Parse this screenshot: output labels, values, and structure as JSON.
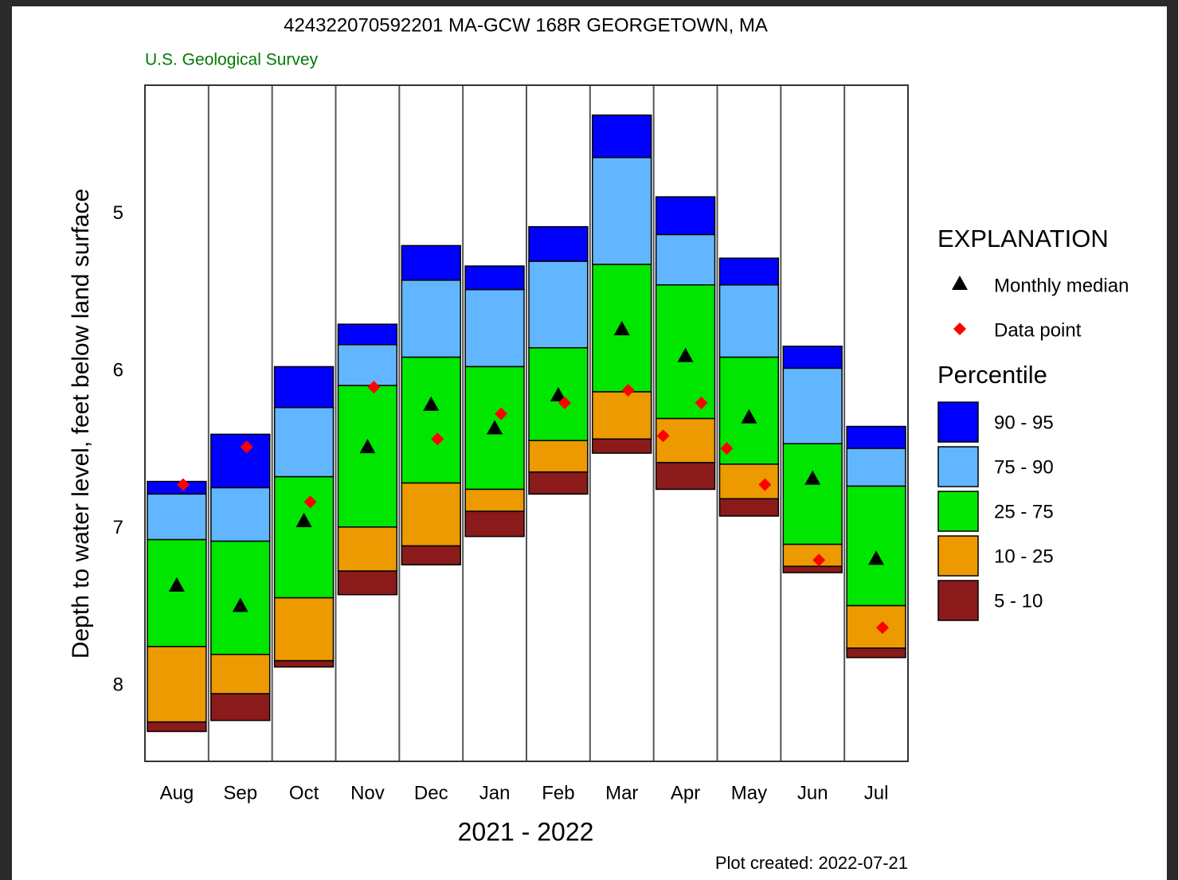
{
  "chart_data": {
    "type": "percentile-box",
    "title": "424322070592201 MA-GCW 168R GEORGETOWN, MA",
    "subtitle": "U.S. Geological Survey",
    "y_label": "Depth to water level, feet below land surface",
    "x_label": "2021 - 2022",
    "footnote": "Plot created: 2022-07-21",
    "categories": [
      "Aug",
      "Sep",
      "Oct",
      "Nov",
      "Dec",
      "Jan",
      "Feb",
      "Mar",
      "Apr",
      "May",
      "Jun",
      "Jul"
    ],
    "ylim": [
      4.18,
      8.48
    ],
    "y_inverted": true,
    "yticks": [
      5,
      6,
      7,
      8
    ],
    "boundaries": [
      [
        6.7,
        6.4,
        5.97,
        5.7,
        5.2,
        5.33,
        5.08,
        4.37,
        4.89,
        5.28,
        5.84,
        6.35
      ],
      [
        6.78,
        6.74,
        6.23,
        5.83,
        5.42,
        5.48,
        5.3,
        4.64,
        5.13,
        5.45,
        5.98,
        6.49
      ],
      [
        7.07,
        7.08,
        6.67,
        6.09,
        5.91,
        5.97,
        5.85,
        5.32,
        5.45,
        5.91,
        6.46,
        6.73
      ],
      [
        7.75,
        7.8,
        7.44,
        6.99,
        6.71,
        6.75,
        6.44,
        6.13,
        6.3,
        6.59,
        7.1,
        7.49
      ],
      [
        8.23,
        8.05,
        7.84,
        7.27,
        7.11,
        6.89,
        6.64,
        6.43,
        6.58,
        6.81,
        7.24,
        7.76
      ],
      [
        8.29,
        8.22,
        7.88,
        7.42,
        7.23,
        7.05,
        6.78,
        6.52,
        6.75,
        6.92,
        7.28,
        7.82
      ]
    ],
    "bands": [
      {
        "name": "90 - 95",
        "color": "#0000ff"
      },
      {
        "name": "75 - 90",
        "color": "#62b6ff"
      },
      {
        "name": "25 - 75",
        "color": "#00e600"
      },
      {
        "name": "10 - 25",
        "color": "#ec9a00"
      },
      {
        "name": "5 - 10",
        "color": "#8b1a1a"
      }
    ],
    "median": {
      "name": "Monthly median",
      "color": "#000000",
      "values": [
        7.36,
        7.49,
        6.95,
        6.48,
        6.21,
        6.36,
        6.15,
        5.73,
        5.9,
        6.29,
        6.68,
        7.19
      ]
    },
    "data_points": {
      "name": "Data point",
      "color": "#ff0000",
      "categories": [
        "Aug",
        "Sep",
        "Oct",
        "Nov",
        "Dec",
        "Jan",
        "Feb",
        "Mar",
        "Apr",
        "Apr",
        "May",
        "May",
        "Jun",
        "Jul"
      ],
      "values": [
        6.72,
        6.48,
        6.83,
        6.1,
        6.43,
        6.27,
        6.2,
        6.12,
        6.41,
        6.2,
        6.49,
        6.72,
        7.2,
        7.63
      ]
    },
    "legend_title": "EXPLANATION",
    "percentile_title": "Percentile"
  }
}
